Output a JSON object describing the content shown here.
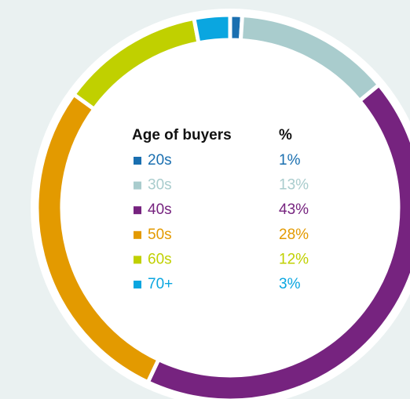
{
  "chart_data": {
    "type": "donut",
    "legend_header": "Age of buyers",
    "value_header": "%",
    "categories": [
      "20s",
      "30s",
      "40s",
      "50s",
      "60s",
      "70+"
    ],
    "values": [
      1,
      13,
      43,
      28,
      12,
      3
    ],
    "value_labels": [
      "1%",
      "13%",
      "43%",
      "28%",
      "12%",
      "3%"
    ],
    "colors": [
      "#1a6fb0",
      "#a9cccd",
      "#76237f",
      "#e39a00",
      "#c0d000",
      "#0aa6e0"
    ]
  }
}
